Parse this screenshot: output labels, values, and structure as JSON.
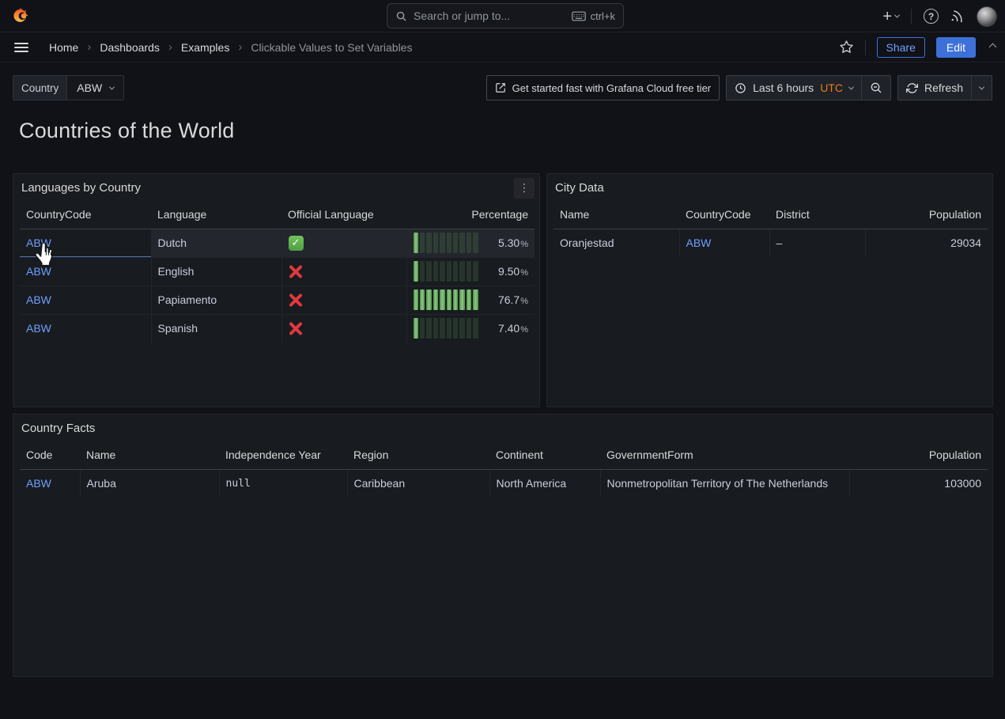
{
  "topbar": {
    "search_placeholder": "Search or jump to...",
    "shortcut": "ctrl+k"
  },
  "breadcrumb": {
    "items": [
      "Home",
      "Dashboards",
      "Examples",
      "Clickable Values to Set Variables"
    ],
    "separator": "›"
  },
  "header_actions": {
    "share": "Share",
    "edit": "Edit"
  },
  "toolbar": {
    "variable_label": "Country",
    "variable_value": "ABW",
    "cloud_cta": "Get started fast with Grafana Cloud free tier",
    "time_range": "Last 6 hours",
    "timezone": "UTC",
    "refresh": "Refresh"
  },
  "page": {
    "title": "Countries of the World"
  },
  "panels": {
    "languages": {
      "title": "Languages by Country",
      "columns": [
        "CountryCode",
        "Language",
        "Official Language",
        "Percentage"
      ],
      "percent_suffix": "%",
      "gauge_segments": 10,
      "rows": [
        {
          "country_code": "ABW",
          "language": "Dutch",
          "official": true,
          "percentage": "5.30",
          "value": 5.3
        },
        {
          "country_code": "ABW",
          "language": "English",
          "official": false,
          "percentage": "9.50",
          "value": 9.5
        },
        {
          "country_code": "ABW",
          "language": "Papiamento",
          "official": false,
          "percentage": "76.7",
          "value": 76.7
        },
        {
          "country_code": "ABW",
          "language": "Spanish",
          "official": false,
          "percentage": "7.40",
          "value": 7.4
        }
      ]
    },
    "city": {
      "title": "City Data",
      "columns": [
        "Name",
        "CountryCode",
        "District",
        "Population"
      ],
      "rows": [
        {
          "name": "Oranjestad",
          "country_code": "ABW",
          "district": "–",
          "population": "29034"
        }
      ]
    },
    "facts": {
      "title": "Country Facts",
      "columns": [
        "Code",
        "Name",
        "Independence Year",
        "Region",
        "Continent",
        "GovernmentForm",
        "Population"
      ],
      "rows": [
        {
          "code": "ABW",
          "name": "Aruba",
          "independence_year": "null",
          "region": "Caribbean",
          "continent": "North America",
          "government_form": "Nonmetropolitan Territory of The Netherlands",
          "population": "103000"
        }
      ]
    }
  },
  "colors": {
    "link_blue": "#6e9fff",
    "edit_button_blue": "#3d71d9",
    "gauge_green": "#73bf69",
    "utc_orange": "#eb7b18",
    "cross_red": "#e0393f",
    "check_green": "#5fae53",
    "panel_bg": "#181b1f",
    "page_bg": "#111217"
  }
}
